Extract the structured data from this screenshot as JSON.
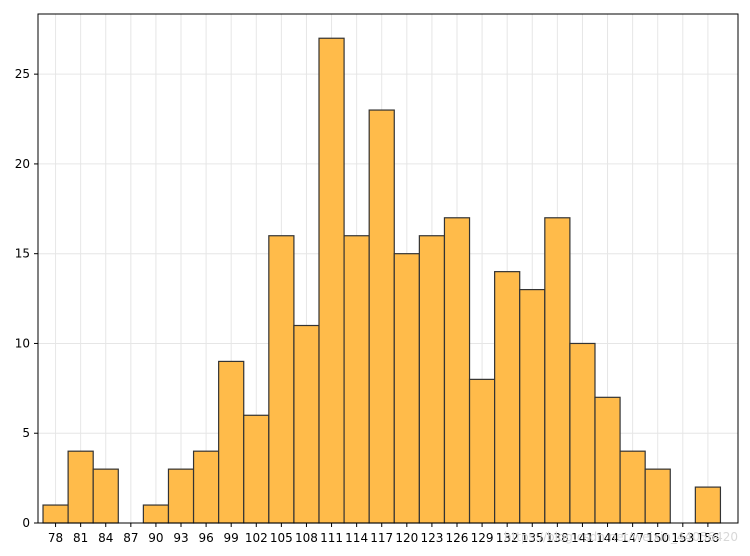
{
  "chart_data": {
    "type": "bar",
    "title": "",
    "xlabel": "",
    "ylabel": "",
    "bin_edges": [
      78,
      81,
      84,
      87,
      90,
      93,
      96,
      99,
      102,
      105,
      108,
      111,
      114,
      117,
      120,
      123,
      126,
      129,
      132,
      135,
      138,
      141,
      144,
      147,
      150,
      153,
      156
    ],
    "values": [
      1,
      4,
      3,
      0,
      1,
      3,
      4,
      9,
      6,
      16,
      11,
      27,
      16,
      23,
      15,
      16,
      17,
      8,
      14,
      13,
      17,
      10,
      7,
      4,
      3,
      0,
      2
    ],
    "x_ticks": [
      "78",
      "81",
      "84",
      "87",
      "90",
      "93",
      "96",
      "99",
      "102",
      "105",
      "108",
      "111",
      "114",
      "117",
      "120",
      "123",
      "126",
      "129",
      "132",
      "135",
      "138",
      "141",
      "144",
      "147",
      "150",
      "153",
      "156"
    ],
    "y_ticks": [
      "0",
      "5",
      "10",
      "15",
      "20",
      "25"
    ],
    "y_tick_values": [
      0,
      5,
      10,
      15,
      20,
      25
    ],
    "xlim": [
      75.9,
      159.6
    ],
    "ylim": [
      0,
      28.35
    ],
    "grid": true,
    "bar_color": "#FFBB4A",
    "edge_color": "#333333",
    "watermark": "https://blog.csdn.net/weixin_44056420"
  }
}
